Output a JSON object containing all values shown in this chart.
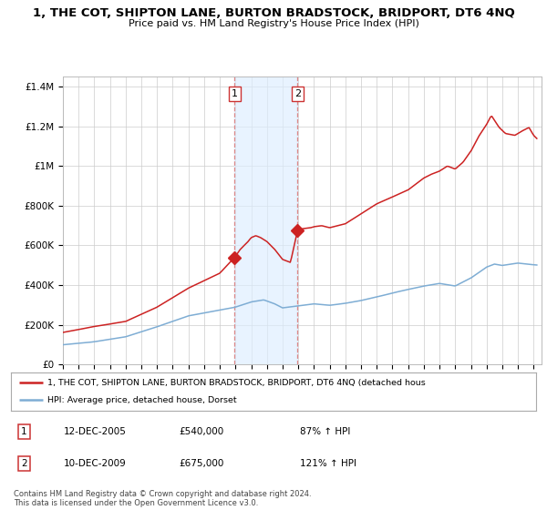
{
  "title": "1, THE COT, SHIPTON LANE, BURTON BRADSTOCK, BRIDPORT, DT6 4NQ",
  "subtitle": "Price paid vs. HM Land Registry's House Price Index (HPI)",
  "xlim_start": 1995.0,
  "xlim_end": 2025.5,
  "ylim_min": 0,
  "ylim_max": 1450000,
  "hpi_color": "#7eadd4",
  "price_color": "#cc2222",
  "sale1_date": 2005.95,
  "sale1_price": 540000,
  "sale2_date": 2009.95,
  "sale2_price": 675000,
  "shade_x1": 2005.95,
  "shade_x2": 2009.95,
  "legend_label1": "1, THE COT, SHIPTON LANE, BURTON BRADSTOCK, BRIDPORT, DT6 4NQ (detached hous",
  "legend_label2": "HPI: Average price, detached house, Dorset",
  "footnote": "Contains HM Land Registry data © Crown copyright and database right 2024.\nThis data is licensed under the Open Government Licence v3.0.",
  "table_rows": [
    {
      "num": "1",
      "date": "12-DEC-2005",
      "price": "£540,000",
      "hpi": "87% ↑ HPI"
    },
    {
      "num": "2",
      "date": "10-DEC-2009",
      "price": "£675,000",
      "hpi": "121% ↑ HPI"
    }
  ],
  "ytick_labels": [
    "£0",
    "£200K",
    "£400K",
    "£600K",
    "£800K",
    "£1M",
    "£1.2M",
    "£1.4M"
  ],
  "ytick_values": [
    0,
    200000,
    400000,
    600000,
    800000,
    1000000,
    1200000,
    1400000
  ],
  "background_color": "#ffffff",
  "grid_color": "#cccccc",
  "shade_color": "#ddeeff",
  "vline_color": "#dd8888"
}
